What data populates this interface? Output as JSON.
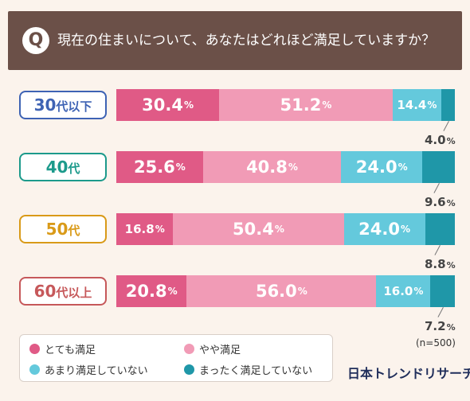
{
  "header": {
    "q_mark": "Q",
    "question": "現在の住まいについて、あなたはどれほど満足していますか？"
  },
  "colors": {
    "very_satisfied": "#e05a86",
    "somewhat_satisfied": "#f19bb6",
    "not_very_satisfied": "#64c9dc",
    "not_satisfied": "#1f97a8"
  },
  "chart_data": {
    "type": "bar",
    "stacked": true,
    "orientation": "horizontal",
    "unit": "%",
    "categories": [
      {
        "main": "30",
        "suffix": "代以下",
        "color": "#3e63b4"
      },
      {
        "main": "40",
        "suffix": "代",
        "color": "#1c9a8b"
      },
      {
        "main": "50",
        "suffix": "代",
        "color": "#d99a18"
      },
      {
        "main": "60",
        "suffix": "代以上",
        "color": "#c6585a"
      }
    ],
    "series": [
      {
        "name": "とても満足",
        "values": [
          30.4,
          25.6,
          16.8,
          20.8
        ],
        "labels": [
          "30.4",
          "25.6",
          "16.8",
          "20.8"
        ]
      },
      {
        "name": "やや満足",
        "values": [
          51.2,
          40.8,
          50.4,
          56.0
        ],
        "labels": [
          "51.2",
          "40.8",
          "50.4",
          "56.0"
        ]
      },
      {
        "name": "あまり満足していない",
        "values": [
          14.4,
          24.0,
          24.0,
          16.0
        ],
        "labels": [
          "14.4",
          "24.0",
          "24.0",
          "16.0"
        ]
      },
      {
        "name": "まったく満足していない",
        "values": [
          4.0,
          9.6,
          8.8,
          7.2
        ],
        "labels": [
          "4.0",
          "9.6",
          "8.8",
          "7.2"
        ]
      }
    ],
    "percent_sign": "%",
    "legend_position": "bottom-left",
    "sample_note": "(n=500)"
  },
  "brand": "日本トレンドリサーチ"
}
